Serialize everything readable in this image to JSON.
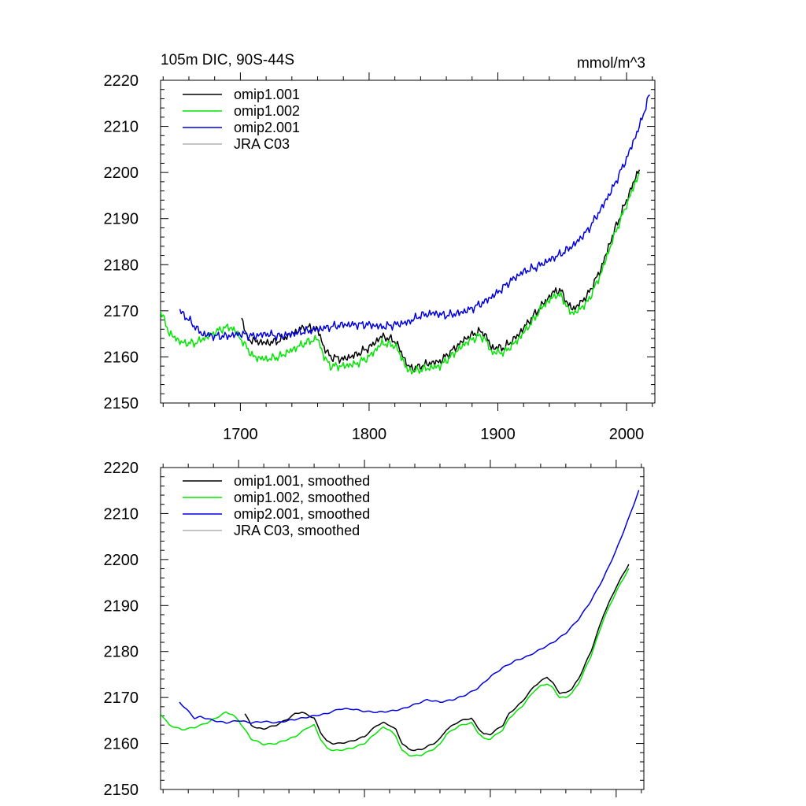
{
  "figure": {
    "title_left": "105m DIC, 90S-44S",
    "title_right": "mmol/m^3"
  },
  "colors": {
    "omip1_001": "#000000",
    "omip1_002": "#00e600",
    "omip2_001": "#0000e0",
    "jra_c03": "#b0b0b0"
  },
  "chart_data": [
    {
      "type": "line",
      "xlim": [
        1638,
        2022
      ],
      "ylim": [
        2150,
        2220
      ],
      "x_ticks": [
        1700,
        1800,
        1900,
        2000
      ],
      "x_tick_labels": [
        "1700",
        "1800",
        "1900",
        "2000"
      ],
      "y_ticks": [
        2150,
        2160,
        2170,
        2180,
        2190,
        2200,
        2210,
        2220
      ],
      "y_tick_labels": [
        "2150",
        "2160",
        "2170",
        "2180",
        "2190",
        "2200",
        "2210",
        "2220"
      ],
      "legend": [
        "omip1.001",
        "omip1.002",
        "omip2.001",
        "JRA C03"
      ],
      "noise": true,
      "series": [
        {
          "name": "omip1.001",
          "color_key": "omip1_001",
          "x": [
            1701,
            1705,
            1710,
            1720,
            1730,
            1740,
            1750,
            1760,
            1765,
            1770,
            1780,
            1790,
            1800,
            1810,
            1820,
            1825,
            1830,
            1835,
            1845,
            1855,
            1865,
            1875,
            1885,
            1890,
            1895,
            1905,
            1915,
            1925,
            1935,
            1945,
            1950,
            1955,
            1960,
            1970,
            1980,
            1990,
            2000,
            2010
          ],
          "y": [
            2169,
            2164,
            2163.5,
            2163,
            2163.5,
            2165,
            2166.5,
            2166,
            2162,
            2160,
            2159.5,
            2160.5,
            2162,
            2164.5,
            2163.5,
            2161,
            2158,
            2157.5,
            2158.5,
            2159,
            2161.5,
            2164,
            2165.5,
            2165,
            2162,
            2162,
            2164.5,
            2168,
            2171.5,
            2174.5,
            2174,
            2171,
            2170.5,
            2173.5,
            2179,
            2187,
            2194,
            2201
          ]
        },
        {
          "name": "omip1.002",
          "color_key": "omip1_002",
          "x": [
            1638,
            1645,
            1655,
            1665,
            1675,
            1685,
            1690,
            1695,
            1700,
            1705,
            1710,
            1720,
            1730,
            1740,
            1750,
            1760,
            1765,
            1770,
            1780,
            1790,
            1800,
            1810,
            1820,
            1825,
            1830,
            1835,
            1845,
            1855,
            1865,
            1875,
            1885,
            1890,
            1895,
            1905,
            1915,
            1925,
            1935,
            1945,
            1950,
            1955,
            1960,
            1970,
            1980,
            1990,
            2000,
            2010
          ],
          "y": [
            2170,
            2165,
            2163,
            2163,
            2164.5,
            2166,
            2166.5,
            2166,
            2164,
            2162,
            2160,
            2159.5,
            2160,
            2161.5,
            2163,
            2164,
            2160,
            2158,
            2158,
            2158.5,
            2160,
            2163,
            2162.5,
            2160,
            2157,
            2157,
            2157.5,
            2158,
            2160.5,
            2163,
            2164.5,
            2164,
            2161,
            2161,
            2163.5,
            2167,
            2171,
            2173.5,
            2173,
            2170,
            2169.5,
            2172,
            2178,
            2186,
            2193,
            2200
          ]
        },
        {
          "name": "omip2.001",
          "color_key": "omip2_001",
          "x": [
            1653,
            1660,
            1670,
            1680,
            1690,
            1700,
            1710,
            1720,
            1730,
            1740,
            1750,
            1760,
            1770,
            1780,
            1790,
            1800,
            1810,
            1820,
            1830,
            1840,
            1850,
            1860,
            1870,
            1880,
            1890,
            1900,
            1910,
            1920,
            1930,
            1940,
            1950,
            1960,
            1970,
            1980,
            1990,
            2000,
            2010,
            2018
          ],
          "y": [
            2170,
            2168,
            2165,
            2164.5,
            2164.5,
            2165,
            2164.5,
            2165,
            2164.5,
            2165,
            2165.5,
            2166,
            2166.5,
            2167,
            2167,
            2167,
            2166.5,
            2167,
            2167.5,
            2169,
            2169.5,
            2169,
            2169.5,
            2170.5,
            2172,
            2174,
            2176.5,
            2178.5,
            2179.5,
            2181,
            2182.5,
            2184.5,
            2187.5,
            2192,
            2197,
            2203,
            2210,
            2217
          ]
        }
      ]
    },
    {
      "type": "line",
      "xlim": [
        1638,
        2022
      ],
      "ylim": [
        2150,
        2220
      ],
      "x_ticks": [
        1700,
        1800,
        1900,
        2000
      ],
      "x_tick_labels": [],
      "y_ticks": [
        2150,
        2160,
        2170,
        2180,
        2190,
        2200,
        2210,
        2220
      ],
      "y_tick_labels": [
        "2150",
        "2160",
        "2170",
        "2180",
        "2190",
        "2200",
        "2210",
        "2220"
      ],
      "legend": [
        "omip1.001, smoothed",
        "omip1.002, smoothed",
        "omip2.001, smoothed",
        "JRA C03, smoothed"
      ],
      "noise": false,
      "series": [
        {
          "name": "omip1.001, smoothed",
          "color_key": "omip1_001",
          "x": [
            1705,
            1710,
            1715,
            1720,
            1730,
            1740,
            1745,
            1750,
            1755,
            1760,
            1765,
            1770,
            1775,
            1780,
            1790,
            1800,
            1810,
            1815,
            1820,
            1825,
            1830,
            1835,
            1840,
            1845,
            1855,
            1860,
            1865,
            1875,
            1880,
            1885,
            1890,
            1895,
            1900,
            1910,
            1915,
            1925,
            1935,
            1940,
            1945,
            1950,
            1955,
            1960,
            1965,
            1970,
            1980,
            1990,
            2000,
            2010
          ],
          "y": [
            2166.5,
            2164,
            2163.3,
            2163.2,
            2164,
            2165.5,
            2166.5,
            2166.8,
            2166.2,
            2165.5,
            2162.5,
            2160.5,
            2160,
            2160,
            2160.5,
            2161.5,
            2164,
            2164.5,
            2164,
            2163,
            2160,
            2158.8,
            2158.5,
            2158.7,
            2160,
            2161,
            2163,
            2164.8,
            2165.2,
            2165.5,
            2163.5,
            2162,
            2162,
            2164,
            2166.5,
            2169,
            2172.5,
            2173.5,
            2174.5,
            2173,
            2171,
            2171,
            2172,
            2174,
            2180,
            2188,
            2194,
            2199
          ]
        },
        {
          "name": "omip1.002, smoothed",
          "color_key": "omip1_002",
          "x": [
            1638,
            1645,
            1655,
            1665,
            1675,
            1685,
            1690,
            1695,
            1700,
            1705,
            1710,
            1720,
            1730,
            1740,
            1745,
            1750,
            1755,
            1760,
            1765,
            1770,
            1775,
            1780,
            1790,
            1800,
            1810,
            1815,
            1820,
            1825,
            1830,
            1835,
            1840,
            1845,
            1855,
            1860,
            1865,
            1875,
            1880,
            1885,
            1890,
            1895,
            1900,
            1910,
            1915,
            1925,
            1935,
            1940,
            1945,
            1950,
            1955,
            1960,
            1965,
            1970,
            1980,
            1990,
            2000,
            2010
          ],
          "y": [
            2166.5,
            2164,
            2163,
            2163.5,
            2164.5,
            2166,
            2166.8,
            2166.3,
            2165,
            2163,
            2161,
            2159.8,
            2160,
            2161,
            2161.5,
            2162.5,
            2163.5,
            2164,
            2161,
            2159,
            2158.5,
            2158.5,
            2159,
            2160,
            2162.5,
            2163.5,
            2163,
            2161.5,
            2158.5,
            2157.5,
            2157.3,
            2157.5,
            2158.8,
            2159.8,
            2162,
            2163.8,
            2164.2,
            2164.5,
            2162.5,
            2161,
            2161,
            2163,
            2165.5,
            2168,
            2171.5,
            2172.5,
            2173,
            2172,
            2170,
            2170,
            2171,
            2173,
            2179,
            2187,
            2193,
            2198
          ]
        },
        {
          "name": "omip2.001, smoothed",
          "color_key": "omip2_001",
          "x": [
            1653,
            1660,
            1665,
            1670,
            1680,
            1690,
            1700,
            1710,
            1720,
            1730,
            1740,
            1750,
            1760,
            1770,
            1780,
            1790,
            1800,
            1810,
            1820,
            1830,
            1840,
            1850,
            1860,
            1870,
            1880,
            1890,
            1900,
            1910,
            1920,
            1930,
            1940,
            1950,
            1960,
            1970,
            1980,
            1990,
            2000,
            2010,
            2018
          ],
          "y": [
            2169,
            2167,
            2165.5,
            2165.8,
            2165,
            2164.5,
            2165,
            2164.5,
            2164.8,
            2164.5,
            2165,
            2165.5,
            2166,
            2166.5,
            2167.5,
            2167.5,
            2167,
            2166.8,
            2167,
            2167.5,
            2168.5,
            2169.5,
            2169,
            2169.5,
            2170.5,
            2172,
            2174.5,
            2176.5,
            2178,
            2179,
            2180.5,
            2182,
            2184,
            2187,
            2191,
            2196,
            2202,
            2209,
            2215
          ]
        }
      ]
    }
  ]
}
